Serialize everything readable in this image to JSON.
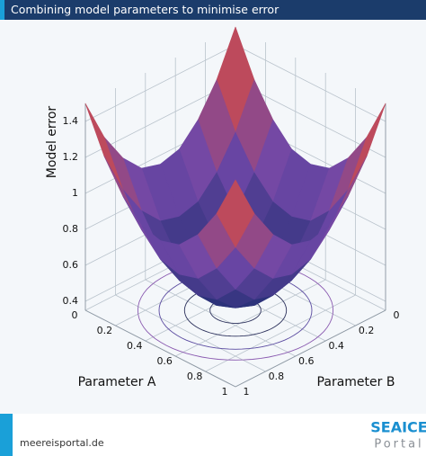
{
  "header": {
    "title": "Combining model parameters to minimise error"
  },
  "chart_data": {
    "type": "surface",
    "x_label": "Parameter A",
    "y_label": "Parameter B",
    "z_label": "Model error",
    "x": [
      0,
      0.125,
      0.25,
      0.375,
      0.5,
      0.625,
      0.75,
      0.875,
      1
    ],
    "y": [
      0,
      0.125,
      0.25,
      0.375,
      0.5,
      0.625,
      0.75,
      0.875,
      1
    ],
    "z": [
      [
        1.5,
        1.26,
        1.09,
        0.98,
        0.95,
        0.98,
        1.09,
        1.26,
        1.5
      ],
      [
        1.26,
        1.02,
        0.85,
        0.74,
        0.71,
        0.74,
        0.85,
        1.02,
        1.26
      ],
      [
        1.09,
        0.85,
        0.68,
        0.57,
        0.54,
        0.57,
        0.68,
        0.85,
        1.09
      ],
      [
        0.98,
        0.74,
        0.57,
        0.47,
        0.43,
        0.47,
        0.57,
        0.74,
        0.98
      ],
      [
        0.95,
        0.71,
        0.54,
        0.43,
        0.4,
        0.43,
        0.54,
        0.71,
        0.95
      ],
      [
        0.98,
        0.74,
        0.57,
        0.47,
        0.43,
        0.47,
        0.57,
        0.74,
        0.98
      ],
      [
        1.09,
        0.85,
        0.68,
        0.57,
        0.54,
        0.57,
        0.68,
        0.85,
        1.09
      ],
      [
        1.26,
        1.02,
        0.85,
        0.74,
        0.71,
        0.74,
        0.85,
        1.02,
        1.26
      ],
      [
        1.5,
        1.26,
        1.09,
        0.98,
        0.95,
        0.98,
        1.09,
        1.26,
        1.5
      ]
    ],
    "xlim": [
      0,
      1
    ],
    "ylim": [
      0,
      1
    ],
    "zlim": [
      0.35,
      1.5
    ],
    "xticks": [
      0,
      0.2,
      0.4,
      0.6,
      0.8,
      1
    ],
    "yticks": [
      0,
      0.2,
      0.4,
      0.6,
      0.8,
      1
    ],
    "zticks": [
      0.4,
      0.6,
      0.8,
      1,
      1.2,
      1.4
    ],
    "colors": [
      "#1a2c6e",
      "#7048a8",
      "#ef4b2a"
    ],
    "grid": true
  },
  "footer": {
    "site": "meereisportal.de",
    "logo_top": "SEAICE",
    "logo_bottom": "Portal"
  }
}
